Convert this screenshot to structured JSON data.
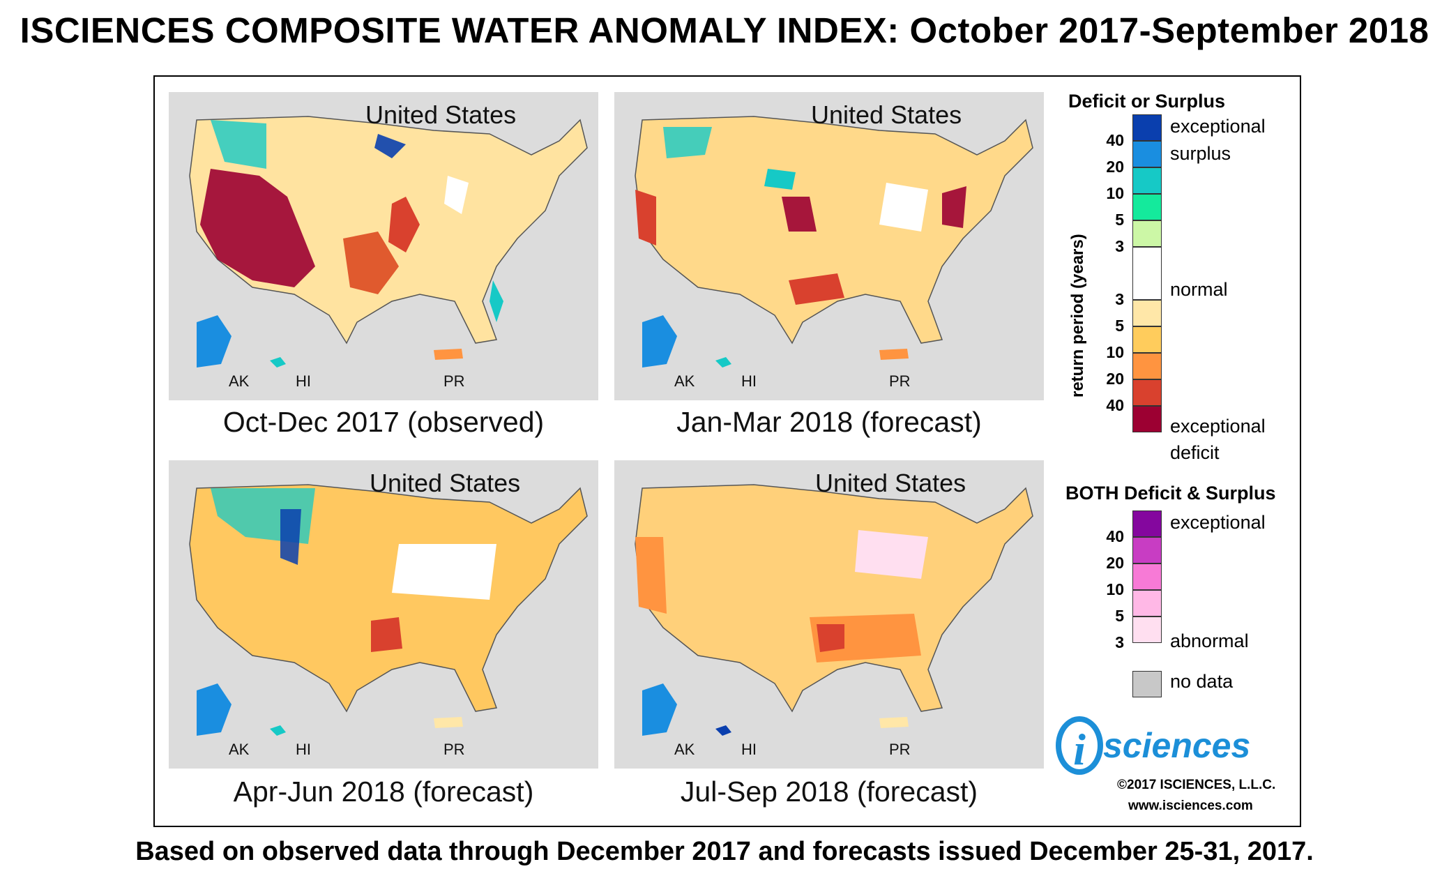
{
  "title": "ISCIENCES COMPOSITE WATER ANOMALY INDEX: October 2017-September 2018",
  "footer": "Based on observed data through December 2017 and forecasts issued December 25-31, 2017.",
  "panels": [
    {
      "region": "United States",
      "caption": "Oct-Dec 2017 (observed)",
      "insets": [
        "AK",
        "HI",
        "PR"
      ]
    },
    {
      "region": "United States",
      "caption": "Jan-Mar 2018 (forecast)",
      "insets": [
        "AK",
        "HI",
        "PR"
      ]
    },
    {
      "region": "United States",
      "caption": "Apr-Jun 2018 (forecast)",
      "insets": [
        "AK",
        "HI",
        "PR"
      ]
    },
    {
      "region": "United States",
      "caption": "Jul-Sep 2018 (forecast)",
      "insets": [
        "AK",
        "HI",
        "PR"
      ]
    }
  ],
  "legend": {
    "deficit_surplus": {
      "heading": "Deficit or Surplus",
      "axis_label": "return period (years)",
      "label_exceptional_surplus_1": "exceptional",
      "label_exceptional_surplus_2": "surplus",
      "label_normal": "normal",
      "label_exceptional_deficit_1": "exceptional",
      "label_exceptional_deficit_2": "deficit",
      "surplus_ticks": [
        "40",
        "20",
        "10",
        "5",
        "3"
      ],
      "deficit_ticks": [
        "3",
        "5",
        "10",
        "20",
        "40"
      ],
      "colors": [
        "#0a3fae",
        "#1a8ee0",
        "#16c9c6",
        "#14ea9c",
        "#ccf7a6",
        "#ffffff",
        "#ffe7a8",
        "#ffcc5c",
        "#ff9440",
        "#d9412e",
        "#9c0032"
      ]
    },
    "both": {
      "heading": "BOTH Deficit & Surplus",
      "label_top": "exceptional",
      "label_bottom": "abnormal",
      "ticks": [
        "40",
        "20",
        "10",
        "5",
        "3"
      ],
      "colors": [
        "#84079e",
        "#c83dc3",
        "#f77ad6",
        "#ffb8e6",
        "#ffdff0"
      ]
    },
    "no_data": {
      "label": "no data",
      "color": "#c8c8c8"
    }
  },
  "logo": {
    "letter": "i",
    "text": "sciences"
  },
  "copyright": "©2017 ISCIENCES, L.L.C.",
  "website": "www.isciences.com"
}
